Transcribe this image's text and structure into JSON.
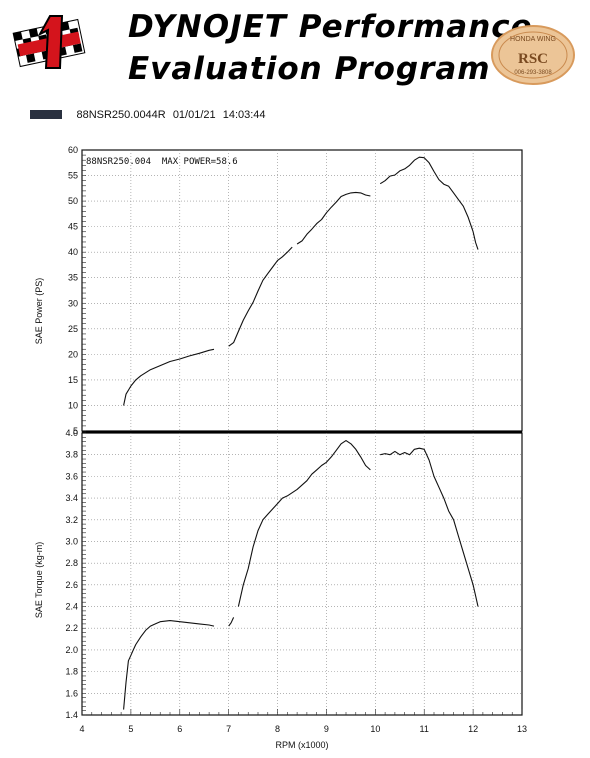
{
  "header": {
    "title_line1": "DYNOJET Performance",
    "title_line2": "Evaluation Program",
    "logo_left": {
      "icon": "checkered-number-one-logo",
      "colors": [
        "#d4141c",
        "#000000"
      ]
    },
    "stamp": {
      "icon": "honda-wing-rsc-stamp",
      "color": "#e2a86a",
      "text_top": "HONDA WING",
      "text_main": "RSC",
      "text_phone": "006-293-3808"
    }
  },
  "run_info": {
    "swatch_color": "#2a3140",
    "run_name": "88NSR250.0044R",
    "date": "01/01/21",
    "time": "14:03:44"
  },
  "chart_data": [
    {
      "type": "line",
      "annotation": "88NSR250.004  MAX POWER=58.6",
      "xlabel": "",
      "ylabel": "SAE Power (PS)",
      "xlim": [
        4,
        13
      ],
      "ylim": [
        5,
        60
      ],
      "yticks": [
        5,
        10,
        15,
        20,
        25,
        30,
        35,
        40,
        45,
        50,
        55,
        60
      ],
      "grid": true,
      "series": [
        {
          "color": "#111111",
          "segments": [
            {
              "x": [
                4.85,
                4.9,
                5.0,
                5.1,
                5.2,
                5.4,
                5.6,
                5.8,
                6.0,
                6.2,
                6.4,
                6.6,
                6.7
              ],
              "y": [
                10.0,
                12.2,
                13.8,
                15.0,
                15.8,
                17.0,
                17.8,
                18.6,
                19.1,
                19.7,
                20.2,
                20.8,
                21.0
              ]
            },
            {
              "x": [
                7.0,
                7.1,
                7.2,
                7.3,
                7.4,
                7.5,
                7.6,
                7.7,
                7.8,
                7.9,
                8.0,
                8.1,
                8.2,
                8.3
              ],
              "y": [
                21.6,
                22.3,
                24.5,
                26.7,
                28.5,
                30.2,
                32.4,
                34.5,
                35.8,
                37.1,
                38.4,
                39.1,
                40.0,
                41.0
              ]
            },
            {
              "x": [
                8.4,
                8.5,
                8.6,
                8.7,
                8.8,
                8.9,
                9.0,
                9.1,
                9.2,
                9.3,
                9.4,
                9.5,
                9.6,
                9.7,
                9.8,
                9.9
              ],
              "y": [
                41.6,
                42.2,
                43.5,
                44.5,
                45.6,
                46.4,
                47.7,
                48.8,
                49.8,
                50.9,
                51.3,
                51.6,
                51.7,
                51.6,
                51.2,
                51.0
              ]
            },
            {
              "x": [
                10.1,
                10.2,
                10.3,
                10.4,
                10.5,
                10.6,
                10.7,
                10.8,
                10.9,
                11.0,
                11.1,
                11.2,
                11.3,
                11.4,
                11.5,
                11.6,
                11.7,
                11.8,
                11.9,
                12.0,
                12.05,
                12.1
              ],
              "y": [
                53.4,
                54.0,
                54.9,
                55.1,
                55.9,
                56.3,
                57.0,
                58.0,
                58.6,
                58.5,
                57.5,
                55.8,
                54.2,
                53.3,
                52.9,
                51.6,
                50.3,
                49.0,
                46.8,
                44.0,
                41.9,
                40.5
              ]
            }
          ]
        }
      ]
    },
    {
      "type": "line",
      "xlabel": "RPM (x1000)",
      "ylabel": "SAE Torque (kg-m)",
      "xlim": [
        4,
        13
      ],
      "ylim": [
        1.4,
        4.0
      ],
      "xticks": [
        4,
        5,
        6,
        7,
        8,
        9,
        10,
        11,
        12,
        13
      ],
      "yticks": [
        "1.4",
        "1.6",
        "1.8",
        "2.0",
        "2.2",
        "2.4",
        "2.6",
        "2.8",
        "3.0",
        "3.2",
        "3.4",
        "3.6",
        "3.8",
        "4.0"
      ],
      "grid": true,
      "series": [
        {
          "color": "#111111",
          "segments": [
            {
              "x": [
                4.85,
                4.9,
                4.95,
                5.0,
                5.05,
                5.1,
                5.2,
                5.3,
                5.4,
                5.5,
                5.6,
                5.8,
                6.0,
                6.2,
                6.4,
                6.6,
                6.7
              ],
              "y": [
                1.45,
                1.7,
                1.9,
                1.95,
                2.0,
                2.05,
                2.12,
                2.18,
                2.22,
                2.24,
                2.26,
                2.27,
                2.26,
                2.25,
                2.24,
                2.23,
                2.22
              ]
            },
            {
              "x": [
                7.0,
                7.05,
                7.1
              ],
              "y": [
                2.22,
                2.25,
                2.3
              ]
            },
            {
              "x": [
                7.2,
                7.3,
                7.4,
                7.5,
                7.6,
                7.7,
                7.8,
                7.9,
                8.0,
                8.1,
                8.2,
                8.3,
                8.4,
                8.5,
                8.6,
                8.7,
                8.8,
                8.9,
                9.0,
                9.1,
                9.2,
                9.3,
                9.4,
                9.5,
                9.6,
                9.7,
                9.8,
                9.9
              ],
              "y": [
                2.4,
                2.6,
                2.75,
                2.95,
                3.1,
                3.2,
                3.25,
                3.3,
                3.35,
                3.4,
                3.42,
                3.45,
                3.48,
                3.52,
                3.56,
                3.62,
                3.66,
                3.7,
                3.73,
                3.78,
                3.84,
                3.9,
                3.93,
                3.9,
                3.85,
                3.78,
                3.7,
                3.66
              ]
            },
            {
              "x": [
                10.1,
                10.2,
                10.3,
                10.4,
                10.5,
                10.6,
                10.7,
                10.8,
                10.9,
                11.0,
                11.1,
                11.2,
                11.3,
                11.4,
                11.5,
                11.6,
                11.7,
                11.8,
                11.9,
                12.0,
                12.05,
                12.1
              ],
              "y": [
                3.8,
                3.81,
                3.8,
                3.83,
                3.8,
                3.82,
                3.8,
                3.85,
                3.86,
                3.85,
                3.75,
                3.6,
                3.5,
                3.4,
                3.28,
                3.2,
                3.05,
                2.9,
                2.75,
                2.6,
                2.5,
                2.4
              ]
            }
          ]
        }
      ]
    }
  ]
}
